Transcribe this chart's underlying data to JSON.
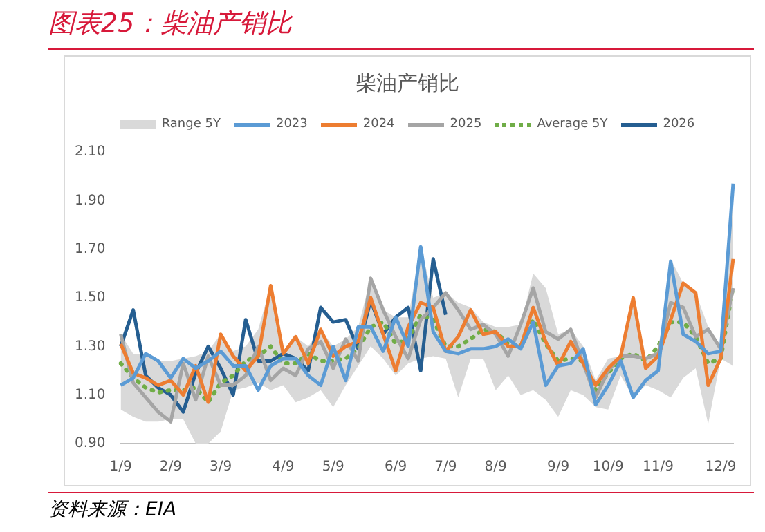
{
  "chart_data": {
    "type": "line",
    "title": "图表25：柴油产销比",
    "subtitle": "柴油产销比",
    "annotations": [
      "资料来源：EIA",
      "Range 5Y"
    ],
    "categories": [
      "1/9",
      null,
      null,
      null,
      "2/9",
      null,
      null,
      null,
      "3/9",
      null,
      null,
      null,
      null,
      "4/9",
      null,
      null,
      null,
      "5/9",
      null,
      null,
      null,
      null,
      "6/9",
      null,
      null,
      null,
      "7/9",
      null,
      null,
      null,
      "8/9",
      null,
      null,
      null,
      null,
      "9/9",
      null,
      null,
      null,
      "10/9",
      null,
      null,
      null,
      "11/9",
      null,
      null,
      null,
      null,
      "12/9",
      null
    ],
    "ylim": [
      0.9,
      2.1
    ],
    "yticks": [
      {
        "value": 0.9,
        "label": "0.90"
      },
      {
        "value": 1.1,
        "label": "1.10"
      },
      {
        "value": 1.3,
        "label": "1.30"
      },
      {
        "value": 1.5,
        "label": "1.50"
      },
      {
        "value": 1.7,
        "label": "1.70"
      },
      {
        "value": 1.9,
        "label": "1.90"
      },
      {
        "value": 2.1,
        "label": "2.10"
      }
    ],
    "legend": "top",
    "marker": "none",
    "series": [
      {
        "name": "2023",
        "color": "#5b9bd5",
        "values": [
          1.14,
          1.17,
          1.27,
          1.24,
          1.17,
          1.25,
          1.21,
          1.24,
          1.28,
          1.22,
          1.22,
          1.12,
          1.22,
          1.25,
          1.25,
          1.18,
          1.14,
          1.3,
          1.16,
          1.38,
          1.38,
          1.28,
          1.42,
          1.3,
          1.71,
          1.36,
          1.28,
          1.27,
          1.29,
          1.29,
          1.3,
          1.33,
          1.29,
          1.4,
          1.14,
          1.22,
          1.23,
          1.29,
          1.06,
          1.14,
          1.24,
          1.09,
          1.16,
          1.2,
          1.65,
          1.35,
          1.32,
          1.27,
          1.28,
          1.97
        ]
      },
      {
        "name": "2024",
        "color": "#ed7d31",
        "values": [
          1.31,
          1.19,
          1.17,
          1.14,
          1.16,
          1.1,
          1.22,
          1.07,
          1.35,
          1.26,
          1.2,
          1.26,
          1.55,
          1.27,
          1.34,
          1.23,
          1.37,
          1.26,
          1.3,
          1.32,
          1.5,
          1.35,
          1.2,
          1.38,
          1.48,
          1.46,
          1.28,
          1.34,
          1.45,
          1.35,
          1.36,
          1.3,
          1.3,
          1.46,
          1.32,
          1.22,
          1.32,
          1.23,
          1.14,
          1.21,
          1.26,
          1.5,
          1.21,
          1.26,
          1.41,
          1.56,
          1.52,
          1.14,
          1.25,
          1.66
        ]
      },
      {
        "name": "2025",
        "color": "#a5a5a5",
        "values": [
          1.35,
          1.15,
          1.09,
          1.03,
          0.99,
          1.23,
          1.08,
          1.26,
          1.14,
          1.14,
          1.18,
          1.3,
          1.16,
          1.21,
          1.18,
          1.29,
          1.32,
          1.21,
          1.33,
          1.24,
          1.58,
          1.45,
          1.34,
          1.25,
          1.41,
          1.46,
          1.52,
          1.45,
          1.37,
          1.39,
          1.35,
          1.26,
          1.39,
          1.54,
          1.36,
          1.33,
          1.37,
          1.23,
          1.09,
          1.2,
          1.26,
          1.26,
          1.25,
          1.27,
          1.48,
          1.46,
          1.34,
          1.37,
          1.29,
          1.54
        ]
      },
      {
        "name": "Average 5Y",
        "color": "#70ad47",
        "line_style": "dotted",
        "values": [
          1.23,
          1.17,
          1.13,
          1.11,
          1.12,
          1.12,
          1.13,
          1.07,
          1.15,
          1.18,
          1.24,
          1.26,
          1.3,
          1.23,
          1.23,
          1.27,
          1.24,
          1.24,
          1.25,
          1.29,
          1.38,
          1.4,
          1.31,
          1.33,
          1.43,
          1.41,
          1.3,
          1.3,
          1.33,
          1.37,
          1.36,
          1.31,
          1.3,
          1.41,
          1.31,
          1.24,
          1.25,
          1.24,
          1.12,
          1.19,
          1.25,
          1.27,
          1.24,
          1.3,
          1.4,
          1.4,
          1.34,
          1.23,
          1.25,
          1.55
        ],
        "lower": [
          1.04,
          1.01,
          0.99,
          0.99,
          1.0,
          1.0,
          0.9,
          0.9,
          0.95,
          1.12,
          1.13,
          1.15,
          1.12,
          1.14,
          1.07,
          1.09,
          1.12,
          1.05,
          1.14,
          1.22,
          1.3,
          1.25,
          1.18,
          1.23,
          1.25,
          1.26,
          1.25,
          1.09,
          1.25,
          1.25,
          1.12,
          1.18,
          1.1,
          1.12,
          1.08,
          1.01,
          1.12,
          1.1,
          1.05,
          1.04,
          1.18,
          1.09,
          1.14,
          1.12,
          1.09,
          1.17,
          1.21,
          0.98,
          1.25,
          1.22
        ],
        "upper": [
          1.35,
          1.27,
          1.27,
          1.24,
          1.24,
          1.25,
          1.26,
          1.28,
          1.35,
          1.28,
          1.3,
          1.37,
          1.55,
          1.28,
          1.34,
          1.3,
          1.37,
          1.3,
          1.33,
          1.38,
          1.58,
          1.45,
          1.42,
          1.42,
          1.71,
          1.5,
          1.52,
          1.48,
          1.46,
          1.4,
          1.38,
          1.38,
          1.39,
          1.6,
          1.54,
          1.35,
          1.37,
          1.3,
          1.16,
          1.25,
          1.26,
          1.5,
          1.26,
          1.28,
          1.66,
          1.56,
          1.52,
          1.38,
          1.3,
          1.97
        ]
      },
      {
        "name": "2026",
        "color": "#255e91",
        "values": [
          1.3,
          1.45,
          1.18,
          1.13,
          1.1,
          1.03,
          1.19,
          1.3,
          1.21,
          1.1,
          1.41,
          1.24,
          1.24,
          1.27,
          1.25,
          1.2,
          1.46,
          1.4,
          1.41,
          1.29,
          1.49,
          1.35,
          1.42,
          1.46,
          1.2,
          1.66,
          1.43,
          null,
          null,
          null,
          null,
          null,
          null,
          null,
          null,
          null,
          null,
          null,
          null,
          null,
          null,
          null,
          null,
          null,
          null,
          null,
          null,
          null,
          null,
          null
        ]
      }
    ]
  }
}
